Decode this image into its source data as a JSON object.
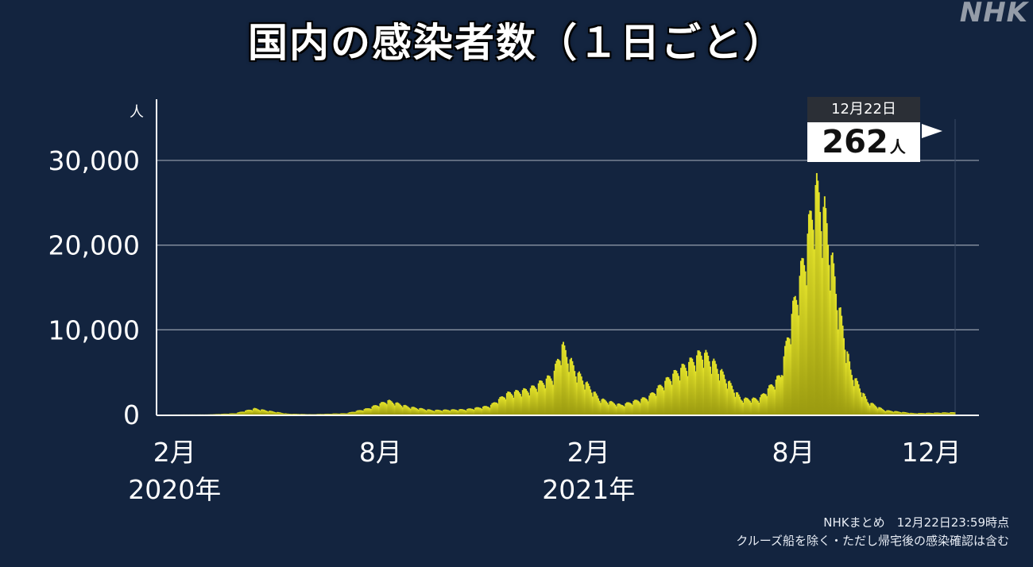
{
  "header": {
    "title": "国内の感染者数（１日ごと）",
    "watermark": "NHK"
  },
  "callout": {
    "date": "12月22日",
    "value": "262",
    "unit": "人"
  },
  "footnotes": {
    "line1": "NHKまとめ　12月22日23:59時点",
    "line2": "クルーズ船を除く・ただし帰宅後の感染確認は含む"
  },
  "colors": {
    "background": "#13243f",
    "bar_fill": "#d4d31c",
    "grid": "#8a93a3"
  },
  "chart_data": {
    "type": "bar",
    "title": "国内の感染者数（１日ごと）",
    "y_unit": "人",
    "ylim": [
      0,
      30000
    ],
    "y_ticks": [
      {
        "label": "0",
        "value": 0
      },
      {
        "label": "10,000",
        "value": 10000
      },
      {
        "label": "20,000",
        "value": 20000
      },
      {
        "label": "30,000",
        "value": 30000
      }
    ],
    "x_range": [
      "2020-01-16",
      "2021-12-22"
    ],
    "x_ticks": [
      {
        "label": "2月",
        "sublabel": "2020年",
        "date": "2020-02-01"
      },
      {
        "label": "8月",
        "sublabel": "",
        "date": "2020-08-01"
      },
      {
        "label": "2月",
        "sublabel": "2021年",
        "date": "2021-02-01"
      },
      {
        "label": "8月",
        "sublabel": "",
        "date": "2021-08-01"
      },
      {
        "label": "12月",
        "sublabel": "",
        "date": "2021-12-01"
      }
    ],
    "grid": true,
    "legend": "none",
    "series": [
      {
        "values_weekly_approx": [
          {
            "date": "2020-01-16",
            "value": 0
          },
          {
            "date": "2020-03-01",
            "value": 10
          },
          {
            "date": "2020-03-25",
            "value": 150
          },
          {
            "date": "2020-04-11",
            "value": 700
          },
          {
            "date": "2020-04-25",
            "value": 400
          },
          {
            "date": "2020-05-10",
            "value": 100
          },
          {
            "date": "2020-06-01",
            "value": 40
          },
          {
            "date": "2020-07-01",
            "value": 150
          },
          {
            "date": "2020-07-20",
            "value": 700
          },
          {
            "date": "2020-08-07",
            "value": 1600
          },
          {
            "date": "2020-08-25",
            "value": 900
          },
          {
            "date": "2020-09-15",
            "value": 500
          },
          {
            "date": "2020-10-15",
            "value": 600
          },
          {
            "date": "2020-11-05",
            "value": 1000
          },
          {
            "date": "2020-11-20",
            "value": 2400
          },
          {
            "date": "2020-12-10",
            "value": 2900
          },
          {
            "date": "2020-12-31",
            "value": 4500
          },
          {
            "date": "2021-01-08",
            "value": 7900
          },
          {
            "date": "2021-01-20",
            "value": 5000
          },
          {
            "date": "2021-02-10",
            "value": 1800
          },
          {
            "date": "2021-03-01",
            "value": 1100
          },
          {
            "date": "2021-03-25",
            "value": 2000
          },
          {
            "date": "2021-04-15",
            "value": 4500
          },
          {
            "date": "2021-05-01",
            "value": 6000
          },
          {
            "date": "2021-05-12",
            "value": 7200
          },
          {
            "date": "2021-05-25",
            "value": 5500
          },
          {
            "date": "2021-06-15",
            "value": 1800
          },
          {
            "date": "2021-07-01",
            "value": 1800
          },
          {
            "date": "2021-07-20",
            "value": 4500
          },
          {
            "date": "2021-07-31",
            "value": 12000
          },
          {
            "date": "2021-08-10",
            "value": 18000
          },
          {
            "date": "2021-08-20",
            "value": 25800
          },
          {
            "date": "2021-08-28",
            "value": 23000
          },
          {
            "date": "2021-09-10",
            "value": 12000
          },
          {
            "date": "2021-09-20",
            "value": 5000
          },
          {
            "date": "2021-10-05",
            "value": 1500
          },
          {
            "date": "2021-10-20",
            "value": 500
          },
          {
            "date": "2021-11-15",
            "value": 150
          },
          {
            "date": "2021-12-22",
            "value": 262
          }
        ]
      }
    ]
  }
}
